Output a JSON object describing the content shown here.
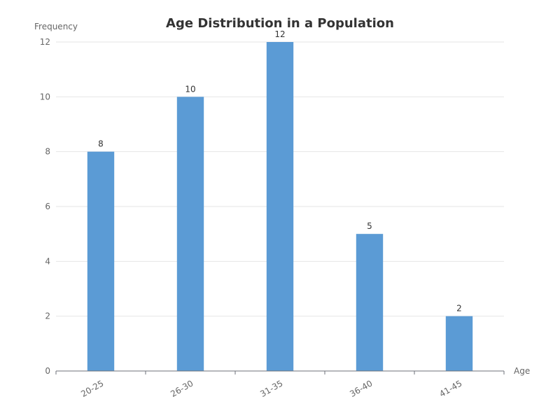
{
  "chart_data": {
    "type": "bar",
    "title": "Age Distribution in a Population",
    "xlabel": "Age",
    "ylabel": "Frequency",
    "categories": [
      "20-25",
      "26-30",
      "31-35",
      "36-40",
      "41-45"
    ],
    "values": [
      8,
      10,
      12,
      5,
      2
    ],
    "ylim": [
      0,
      12
    ],
    "yticks": [
      "0",
      "2",
      "4",
      "6",
      "8",
      "10",
      "12"
    ],
    "grid": true,
    "data_labels": true,
    "bar_color": "#5b9bd5",
    "grid_color": "#e6e6e6",
    "axis_color": "#6e7079"
  }
}
